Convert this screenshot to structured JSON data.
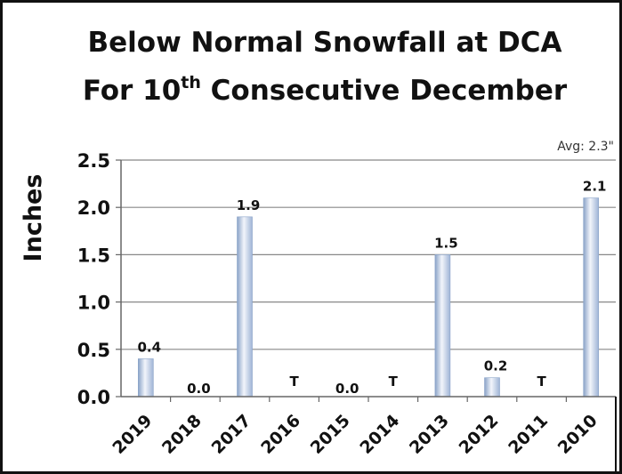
{
  "chart_data": {
    "type": "bar",
    "title_line1": "Below Normal Snowfall at DCA",
    "title_line2_prefix": "For 10",
    "title_line2_sup": "th",
    "title_line2_suffix": " Consecutive December",
    "ylabel": "Inches",
    "ylim": [
      0,
      2.5
    ],
    "yticks": [
      "0.0",
      "0.5",
      "1.0",
      "1.5",
      "2.0",
      "2.5"
    ],
    "annotation": "Avg: 2.3\"",
    "categories": [
      "2019",
      "2018",
      "2017",
      "2016",
      "2015",
      "2014",
      "2013",
      "2012",
      "2011",
      "2010"
    ],
    "values": [
      0.4,
      0.0,
      1.9,
      0,
      0.0,
      0,
      1.5,
      0.2,
      0,
      2.1
    ],
    "data_labels": [
      "0.4",
      "0.0",
      "1.9",
      "T",
      "0.0",
      "T",
      "1.5",
      "0.2",
      "T",
      "2.1"
    ],
    "grid": true,
    "colors": {
      "bar_light": "#e9eef8",
      "bar_mid": "#b9c9e2",
      "bar_dark": "#8aa3c8",
      "grid": "#888888",
      "text": "#111111"
    }
  }
}
